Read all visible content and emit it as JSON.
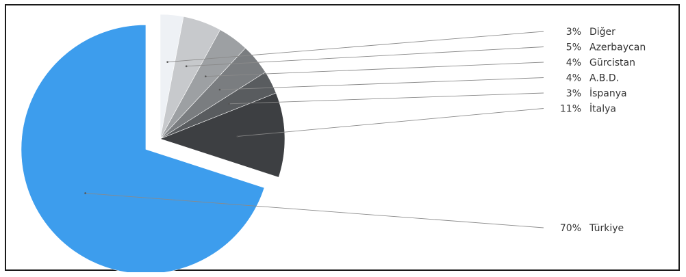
{
  "chart_data": {
    "type": "pie",
    "title": "",
    "exploded": "Türkiye",
    "legend_position": "right",
    "slices": [
      {
        "label": "Diğer",
        "value": 3,
        "value_label": "3%",
        "color": "#eef1f5"
      },
      {
        "label": "Azerbaycan",
        "value": 5,
        "value_label": "5%",
        "color": "#c7c9cc"
      },
      {
        "label": "Gürcistan",
        "value": 4,
        "value_label": "4%",
        "color": "#9da0a3"
      },
      {
        "label": "A.B.D.",
        "value": 4,
        "value_label": "4%",
        "color": "#7a7d80"
      },
      {
        "label": "İspanya",
        "value": 3,
        "value_label": "3%",
        "color": "#595c5f"
      },
      {
        "label": "İtalya",
        "value": 11,
        "value_label": "11%",
        "color": "#3d3f42"
      },
      {
        "label": "Türkiye",
        "value": 70,
        "value_label": "70%",
        "color": "#3d9ded"
      }
    ]
  }
}
